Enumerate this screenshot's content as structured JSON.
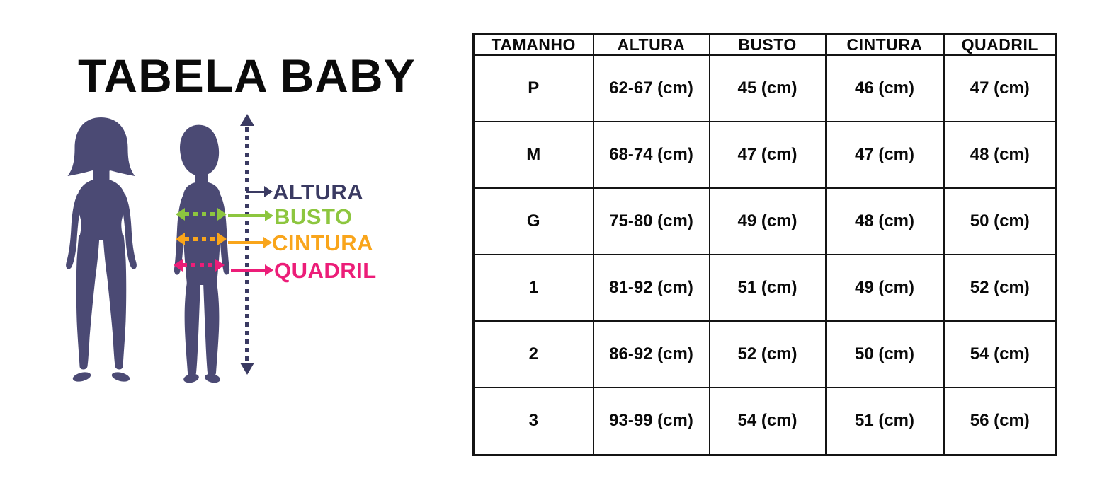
{
  "title": "TABELA BABY",
  "diagram": {
    "silhouette_color": "#4b4a74",
    "height_line_color": "#3a3a62",
    "measurements": [
      {
        "label": "ALTURA",
        "color": "#3a3a62"
      },
      {
        "label": "BUSTO",
        "color": "#8dc63f"
      },
      {
        "label": "CINTURA",
        "color": "#f9a51b"
      },
      {
        "label": "QUADRIL",
        "color": "#ec1d78"
      }
    ]
  },
  "table": {
    "headers": [
      "TAMANHO",
      "ALTURA",
      "BUSTO",
      "CINTURA",
      "QUADRIL"
    ],
    "rows": [
      [
        "P",
        "62-67 (cm)",
        "45 (cm)",
        "46 (cm)",
        "47 (cm)"
      ],
      [
        "M",
        "68-74 (cm)",
        "47 (cm)",
        "47 (cm)",
        "48 (cm)"
      ],
      [
        "G",
        "75-80 (cm)",
        "49 (cm)",
        "48 (cm)",
        "50 (cm)"
      ],
      [
        "1",
        "81-92 (cm)",
        "51 (cm)",
        "49 (cm)",
        "52 (cm)"
      ],
      [
        "2",
        "86-92 (cm)",
        "52 (cm)",
        "50 (cm)",
        "54 (cm)"
      ],
      [
        "3",
        "93-99 (cm)",
        "54 (cm)",
        "51 (cm)",
        "56 (cm)"
      ]
    ]
  },
  "chart_data": {
    "type": "table",
    "title": "TABELA BABY",
    "columns": [
      "TAMANHO",
      "ALTURA",
      "BUSTO",
      "CINTURA",
      "QUADRIL"
    ],
    "rows": [
      [
        "P",
        "62-67 (cm)",
        "45 (cm)",
        "46 (cm)",
        "47 (cm)"
      ],
      [
        "M",
        "68-74 (cm)",
        "47 (cm)",
        "47 (cm)",
        "48 (cm)"
      ],
      [
        "G",
        "75-80 (cm)",
        "49 (cm)",
        "48 (cm)",
        "50 (cm)"
      ],
      [
        "1",
        "81-92 (cm)",
        "51 (cm)",
        "49 (cm)",
        "52 (cm)"
      ],
      [
        "2",
        "86-92 (cm)",
        "52 (cm)",
        "50 (cm)",
        "54 (cm)"
      ],
      [
        "3",
        "93-99 (cm)",
        "54 (cm)",
        "51 (cm)",
        "56 (cm)"
      ]
    ]
  }
}
